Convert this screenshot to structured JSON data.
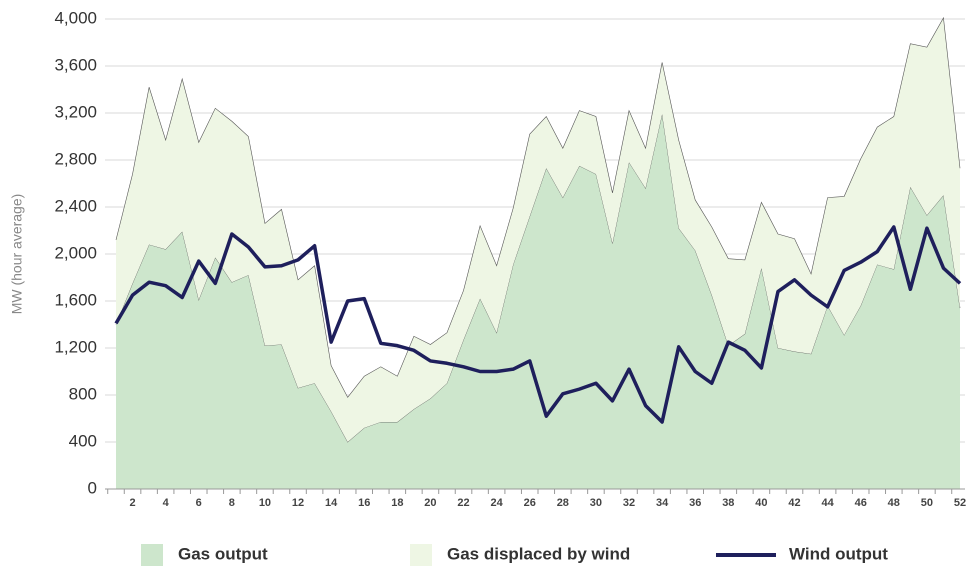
{
  "chart_data": {
    "type": "area",
    "y_label": "MW (hour average)",
    "categories": [
      null,
      "2",
      null,
      "4",
      null,
      "6",
      null,
      "8",
      null,
      "10",
      null,
      "12",
      null,
      "14",
      null,
      "16",
      null,
      "18",
      null,
      "20",
      null,
      "22",
      null,
      "24",
      null,
      "26",
      null,
      "28",
      null,
      "30",
      null,
      "32",
      null,
      "34",
      null,
      "36",
      null,
      "38",
      null,
      "40",
      null,
      "42",
      null,
      "44",
      null,
      "46",
      null,
      "48",
      null,
      "50",
      null,
      "52"
    ],
    "series": [
      {
        "name": "Gas output",
        "color": "#cde6cc",
        "stack": true,
        "values": [
          1400,
          1750,
          2080,
          2040,
          2190,
          1610,
          1970,
          1760,
          1820,
          1220,
          1230,
          860,
          900,
          660,
          400,
          520,
          570,
          570,
          680,
          770,
          900,
          1270,
          1620,
          1330,
          1910,
          2320,
          2730,
          2480,
          2750,
          2680,
          2090,
          2780,
          2560,
          3190,
          2220,
          2030,
          1650,
          1220,
          1320,
          1880,
          1200,
          1170,
          1150,
          1560,
          1310,
          1560,
          1910,
          1870,
          2570,
          2330,
          2500,
          1540
        ]
      },
      {
        "name": "Gas displaced by wind",
        "color": "#eef6e4",
        "stack": true,
        "values": [
          720,
          930,
          1340,
          930,
          1300,
          1340,
          1270,
          1370,
          1180,
          1040,
          1150,
          920,
          1000,
          390,
          380,
          440,
          470,
          390,
          620,
          460,
          430,
          420,
          620,
          570,
          480,
          700,
          440,
          420,
          470,
          490,
          430,
          440,
          340,
          440,
          750,
          430,
          580,
          740,
          630,
          560,
          970,
          960,
          680,
          920,
          1180,
          1250,
          1170,
          1300,
          1220,
          1430,
          1510,
          1190
        ]
      },
      {
        "name": "Wind output",
        "color": "#1e1f5c",
        "type": "line",
        "values": [
          1410,
          1650,
          1760,
          1730,
          1630,
          1940,
          1750,
          2170,
          2060,
          1890,
          1900,
          1950,
          2070,
          1250,
          1600,
          1620,
          1240,
          1220,
          1180,
          1090,
          1070,
          1040,
          1000,
          1000,
          1020,
          1090,
          620,
          810,
          850,
          900,
          750,
          1020,
          710,
          570,
          1210,
          1000,
          900,
          1250,
          1180,
          1030,
          1680,
          1780,
          1650,
          1550,
          1860,
          1930,
          2020,
          2230,
          1700,
          2220,
          1880,
          1750
        ]
      }
    ],
    "ylim": [
      0,
      4000
    ],
    "yticks": [
      0,
      400,
      800,
      {
        "value": 1200,
        "label": "1,200"
      },
      {
        "value": 1600,
        "label": "1,600"
      },
      {
        "value": 2000,
        "label": "2,000"
      },
      {
        "value": 2400,
        "label": "2,400"
      },
      {
        "value": 2800,
        "label": "2,800"
      },
      {
        "value": 3200,
        "label": "3,200"
      },
      {
        "value": 3600,
        "label": "3,600"
      },
      {
        "value": 4000,
        "label": "4,000"
      }
    ],
    "grid": true,
    "legend": "bottom"
  }
}
